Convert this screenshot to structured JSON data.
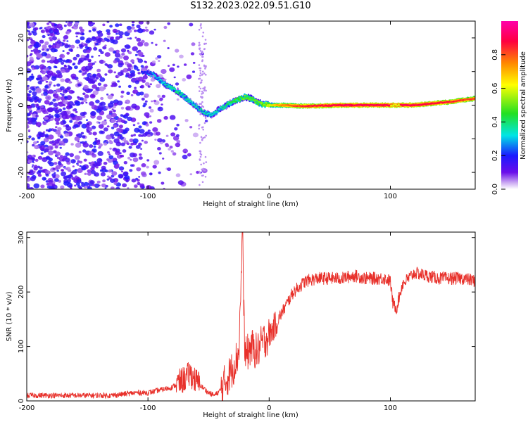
{
  "figure_title": "S132.2023.022.09.51.G10",
  "chart_data": [
    {
      "type": "heatmap",
      "xlabel": "Height of straight line (km)",
      "ylabel": "Frequency (Hz)",
      "xlim": [
        -200,
        170
      ],
      "ylim": [
        -25,
        25
      ],
      "x_ticks": [
        -200,
        -100,
        0,
        100
      ],
      "y_ticks": [
        -20,
        -10,
        0,
        10,
        20
      ],
      "colorbar": {
        "label": "Normalized spectral amplitude",
        "range": [
          0,
          1
        ],
        "ticks": [
          0.0,
          0.2,
          0.4,
          0.6,
          0.8
        ],
        "tick_labels": [
          "0.0",
          "0.2",
          "0.4",
          "0.6",
          "0.8"
        ],
        "colors": [
          "#ffffff",
          "#c9a6f2",
          "#6a0dea",
          "#1a1aff",
          "#00e5e5",
          "#22e022",
          "#ffff00",
          "#ff8800",
          "#ff0040",
          "#ff00aa"
        ]
      },
      "ridge": {
        "x": [
          -105,
          -95,
          -85,
          -75,
          -65,
          -55,
          -48,
          -40,
          -30,
          -20,
          -15,
          -8,
          0,
          10,
          30,
          60,
          90,
          120,
          150,
          170
        ],
        "y": [
          10,
          9,
          6,
          4,
          1,
          -2,
          -3,
          -1,
          1,
          2.5,
          2,
          0.5,
          0,
          0,
          -0.3,
          0,
          0,
          0,
          1,
          2
        ],
        "amplitude": [
          0.2,
          0.3,
          0.35,
          0.4,
          0.35,
          0.35,
          0.35,
          0.35,
          0.45,
          0.5,
          0.5,
          0.5,
          0.6,
          0.75,
          0.85,
          0.9,
          0.9,
          0.9,
          0.85,
          0.8
        ]
      },
      "noise_region": {
        "x_range": [
          -200,
          -55
        ],
        "y_range": [
          -25,
          25
        ],
        "amplitude_range": [
          0.05,
          0.2
        ]
      }
    },
    {
      "type": "line",
      "xlabel": "Height of straight line (km)",
      "ylabel": "SNR (10 * v/v)",
      "xlim": [
        -200,
        170
      ],
      "ylim": [
        0,
        310
      ],
      "x_ticks": [
        -200,
        -100,
        0,
        100
      ],
      "y_ticks": [
        0,
        100,
        200,
        300
      ],
      "color": "#e8302a",
      "series": [
        {
          "x": [
            -200,
            -170,
            -150,
            -130,
            -110,
            -100,
            -90,
            -80,
            -70,
            -65,
            -60,
            -55,
            -50,
            -45,
            -40,
            -35,
            -30,
            -25,
            -22,
            -20,
            -15,
            -10,
            -5,
            0,
            5,
            10,
            15,
            20,
            25,
            30,
            40,
            50,
            60,
            70,
            80,
            90,
            95,
            100,
            102,
            105,
            110,
            115,
            120,
            130,
            140,
            150,
            160,
            170
          ],
          "y": [
            10,
            10,
            10,
            10,
            15,
            15,
            20,
            25,
            40,
            50,
            35,
            25,
            15,
            10,
            20,
            40,
            60,
            90,
            300,
            80,
            100,
            90,
            110,
            120,
            140,
            160,
            180,
            200,
            210,
            220,
            225,
            225,
            225,
            230,
            225,
            225,
            225,
            220,
            180,
            170,
            215,
            225,
            235,
            230,
            225,
            225,
            225,
            220
          ]
        }
      ]
    }
  ]
}
